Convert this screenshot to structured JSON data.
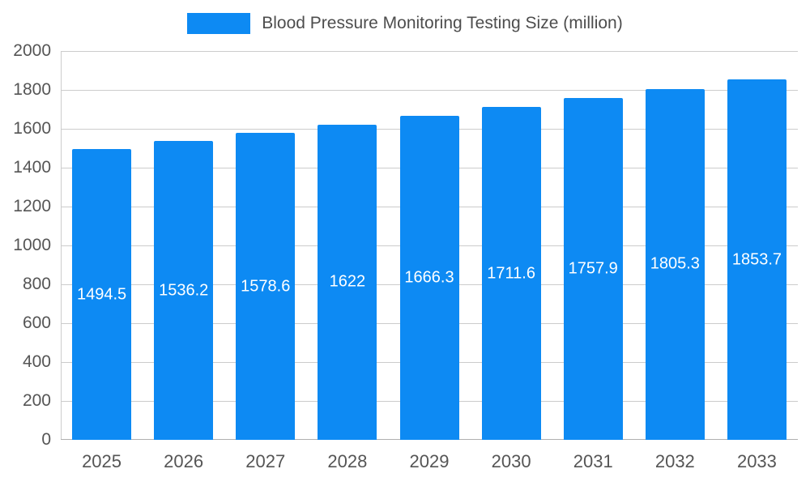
{
  "chart_data": {
    "type": "bar",
    "title": "Blood Pressure Monitoring Testing Size (million)",
    "categories": [
      "2025",
      "2026",
      "2027",
      "2028",
      "2029",
      "2030",
      "2031",
      "2032",
      "2033"
    ],
    "values": [
      1494.5,
      1536.2,
      1578.6,
      1622,
      1666.3,
      1711.6,
      1757.9,
      1805.3,
      1853.7
    ],
    "value_labels": [
      "1494.5",
      "1536.2",
      "1578.6",
      "1622",
      "1666.3",
      "1711.6",
      "1757.9",
      "1805.3",
      "1853.7"
    ],
    "xlabel": "",
    "ylabel": "",
    "ylim": [
      0,
      2000
    ],
    "yticks": [
      0,
      200,
      400,
      600,
      800,
      1000,
      1200,
      1400,
      1600,
      1800,
      2000
    ],
    "grid": true,
    "legend_position": "top-center",
    "bar_color": "#0d8af3",
    "label_color": "#ffffff",
    "axis_text_color": "#555555",
    "grid_color": "#cccccc"
  }
}
